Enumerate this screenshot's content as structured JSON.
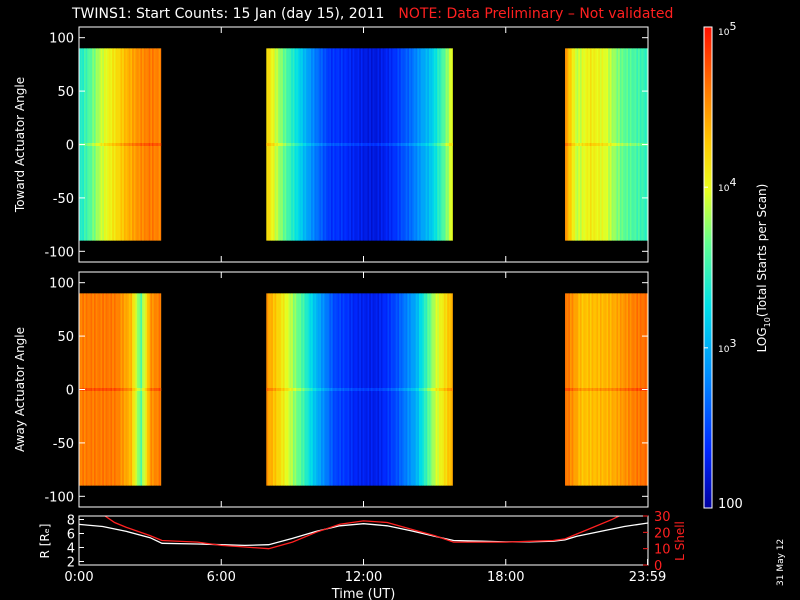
{
  "title": {
    "main": "TWINS1: Start Counts: 15 Jan (day  15), 2011",
    "note": "NOTE: Data Preliminary – Not validated"
  },
  "stamp": "31 May 12",
  "colors": {
    "background": "#000000",
    "note": "#ff2020",
    "l_shell_line": "#ff2020",
    "r_line": "#ffffff"
  },
  "chart_data": [
    {
      "type": "heatmap",
      "name": "toward",
      "ylabel": "Toward Actuator Angle",
      "ylim": [
        -110,
        110
      ],
      "yticks": [
        100,
        50,
        0,
        -50,
        -100
      ],
      "xlim": [
        0,
        24
      ],
      "data_y_range": [
        -90,
        90
      ],
      "segments": [
        {
          "start": 0.0,
          "end": 3.45,
          "profile": [
            [
              0.0,
              0.45
            ],
            [
              0.5,
              0.52
            ],
            [
              1.0,
              0.62
            ],
            [
              1.6,
              0.72
            ],
            [
              2.0,
              0.8
            ],
            [
              2.5,
              0.86
            ],
            [
              3.0,
              0.88
            ],
            [
              3.45,
              0.84
            ]
          ]
        },
        {
          "start": 7.9,
          "end": 15.75,
          "profile": [
            [
              7.9,
              0.72
            ],
            [
              8.4,
              0.6
            ],
            [
              9.2,
              0.45
            ],
            [
              10.0,
              0.25
            ],
            [
              10.6,
              0.12
            ],
            [
              11.5,
              0.09
            ],
            [
              12.5,
              0.1
            ],
            [
              13.3,
              0.14
            ],
            [
              14.0,
              0.2
            ],
            [
              14.8,
              0.35
            ],
            [
              15.4,
              0.55
            ],
            [
              15.75,
              0.7
            ]
          ]
        },
        {
          "start": 20.5,
          "end": 24.0,
          "profile": [
            [
              20.5,
              0.82
            ],
            [
              21.0,
              0.6
            ],
            [
              21.6,
              0.7
            ],
            [
              22.2,
              0.68
            ],
            [
              23.0,
              0.55
            ],
            [
              24.0,
              0.45
            ]
          ]
        }
      ]
    },
    {
      "type": "heatmap",
      "name": "away",
      "ylabel": "Away Actuator Angle",
      "ylim": [
        -110,
        110
      ],
      "yticks": [
        100,
        50,
        0,
        -50,
        -100
      ],
      "xlim": [
        0,
        24
      ],
      "data_y_range": [
        -90,
        90
      ],
      "segments": [
        {
          "start": 0.0,
          "end": 3.45,
          "profile": [
            [
              0.0,
              0.86
            ],
            [
              0.8,
              0.84
            ],
            [
              1.6,
              0.86
            ],
            [
              2.2,
              0.8
            ],
            [
              2.6,
              0.55
            ],
            [
              3.0,
              0.84
            ],
            [
              3.45,
              0.86
            ]
          ]
        },
        {
          "start": 7.9,
          "end": 15.75,
          "profile": [
            [
              7.9,
              0.8
            ],
            [
              8.6,
              0.7
            ],
            [
              9.4,
              0.55
            ],
            [
              10.2,
              0.3
            ],
            [
              10.8,
              0.14
            ],
            [
              11.6,
              0.1
            ],
            [
              12.6,
              0.12
            ],
            [
              13.4,
              0.18
            ],
            [
              14.2,
              0.3
            ],
            [
              15.0,
              0.62
            ],
            [
              15.75,
              0.82
            ]
          ]
        },
        {
          "start": 20.5,
          "end": 24.0,
          "profile": [
            [
              20.5,
              0.86
            ],
            [
              21.2,
              0.75
            ],
            [
              22.0,
              0.8
            ],
            [
              23.0,
              0.84
            ],
            [
              24.0,
              0.86
            ]
          ]
        }
      ]
    },
    {
      "type": "line",
      "name": "ephemeris",
      "xlabel": "Time (UT)",
      "ylabel_left": "R [Rₑ]",
      "ylabel_right": "L Shell",
      "ylim_left": [
        1.5,
        8.5
      ],
      "ylim_right": [
        0,
        30
      ],
      "yticks_left": [
        2,
        4,
        6,
        8
      ],
      "yticks_right": [
        0,
        10,
        20,
        30
      ],
      "xticks": [
        "0:00",
        "6:00",
        "12:00",
        "18:00",
        "23:59"
      ],
      "xtick_values": [
        0,
        6,
        12,
        18,
        23.98
      ],
      "series": [
        {
          "name": "R",
          "axis": "left",
          "x": [
            0,
            1,
            2,
            3,
            3.5,
            5,
            6,
            7,
            8,
            9,
            10,
            11,
            12,
            13,
            14,
            15,
            15.8,
            17,
            18,
            19,
            20,
            20.5,
            21,
            22,
            23,
            24
          ],
          "y": [
            7.3,
            7.0,
            6.3,
            5.4,
            4.6,
            4.5,
            4.4,
            4.3,
            4.4,
            5.3,
            6.3,
            7.1,
            7.4,
            7.1,
            6.4,
            5.6,
            5.0,
            4.9,
            4.8,
            4.8,
            4.9,
            5.1,
            5.6,
            6.3,
            7.0,
            7.5
          ]
        },
        {
          "name": "L Shell",
          "axis": "right",
          "x": [
            1.0,
            1.5,
            2.0,
            3.0,
            3.5,
            5,
            6,
            7,
            8,
            9,
            10,
            11,
            12,
            13,
            14,
            15,
            15.8,
            17,
            18,
            19,
            20,
            20.5,
            21.5,
            22.5,
            23.2
          ],
          "y": [
            31,
            26,
            23,
            18,
            15,
            14,
            12,
            11,
            10,
            14,
            20,
            25,
            27,
            26,
            22,
            18,
            14,
            14,
            14,
            14.5,
            15,
            16,
            22,
            28,
            33
          ]
        }
      ]
    }
  ],
  "colorbar": {
    "label": "LOG10(Total Starts per Scan)",
    "label_main": "LOG",
    "label_sub": "10",
    "label_rest": "(Total Starts per Scan)",
    "ticks": [
      {
        "base": "10",
        "exp": "5",
        "frac": 1.0
      },
      {
        "base": "10",
        "exp": "4",
        "frac": 0.667
      },
      {
        "base": "10",
        "exp": "3",
        "frac": 0.333
      },
      {
        "base": "100",
        "exp": "",
        "frac": 0.0
      }
    ]
  }
}
